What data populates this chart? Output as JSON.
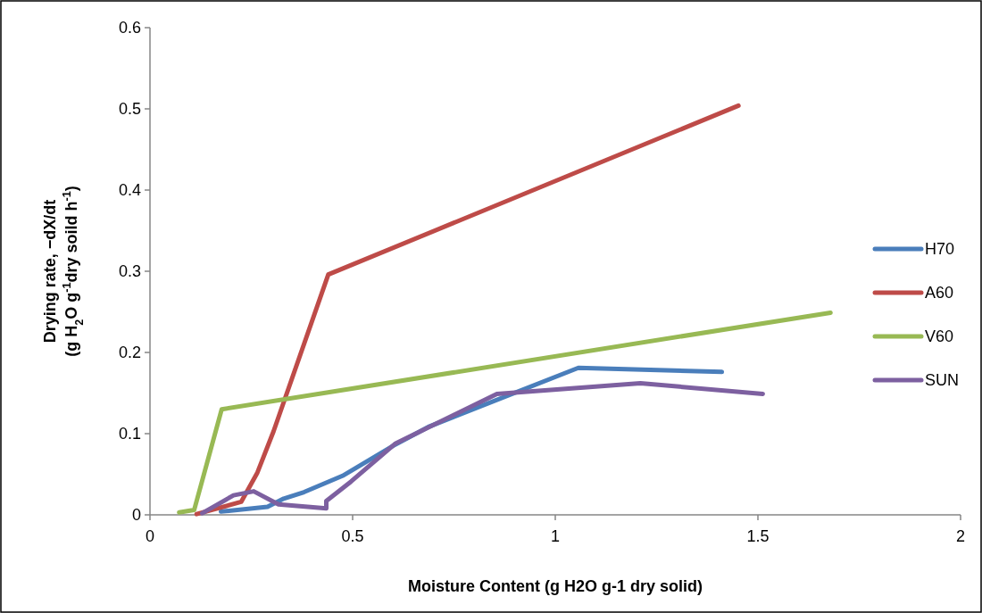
{
  "chart_data": {
    "type": "line",
    "xlabel": "Moisture Content (g H2O g-1 dry solid)",
    "ylabel": "Drying rate,  −dX/dt\n(g H$_{2}$O g$^{-1}$dry soild h$^{-1}$)",
    "xlim": [
      0,
      2
    ],
    "xticks": [
      0,
      0.5,
      1,
      1.5,
      2
    ],
    "ylim": [
      0,
      0.6
    ],
    "yticks": [
      0,
      0.1,
      0.2,
      0.3,
      0.4,
      0.5,
      0.6
    ],
    "grid": false,
    "legend": "right",
    "marker": "none",
    "line_style": "solid",
    "series": [
      {
        "name": "H70",
        "color": "#4a7ebb",
        "x": [
          0.175,
          0.29,
          0.33,
          0.38,
          0.475,
          0.6,
          0.69,
          1.057,
          1.411
        ],
        "values": [
          0.004,
          0.01,
          0.02,
          0.028,
          0.048,
          0.085,
          0.109,
          0.181,
          0.176
        ]
      },
      {
        "name": "A60",
        "color": "#be4b48",
        "x": [
          0.115,
          0.225,
          0.265,
          0.305,
          0.44,
          1.452
        ],
        "values": [
          0.001,
          0.016,
          0.052,
          0.103,
          0.296,
          0.504
        ]
      },
      {
        "name": "V60",
        "color": "#98b954",
        "x": [
          0.072,
          0.109,
          0.177,
          1.679
        ],
        "values": [
          0.003,
          0.006,
          0.13,
          0.249
        ]
      },
      {
        "name": "SUN",
        "color": "#7d60a0",
        "x": [
          0.129,
          0.206,
          0.256,
          0.317,
          0.435,
          0.435,
          0.496,
          0.606,
          0.856,
          1.21,
          1.512
        ],
        "values": [
          0.002,
          0.024,
          0.029,
          0.013,
          0.008,
          0.017,
          0.041,
          0.088,
          0.149,
          0.162,
          0.149
        ]
      }
    ]
  }
}
